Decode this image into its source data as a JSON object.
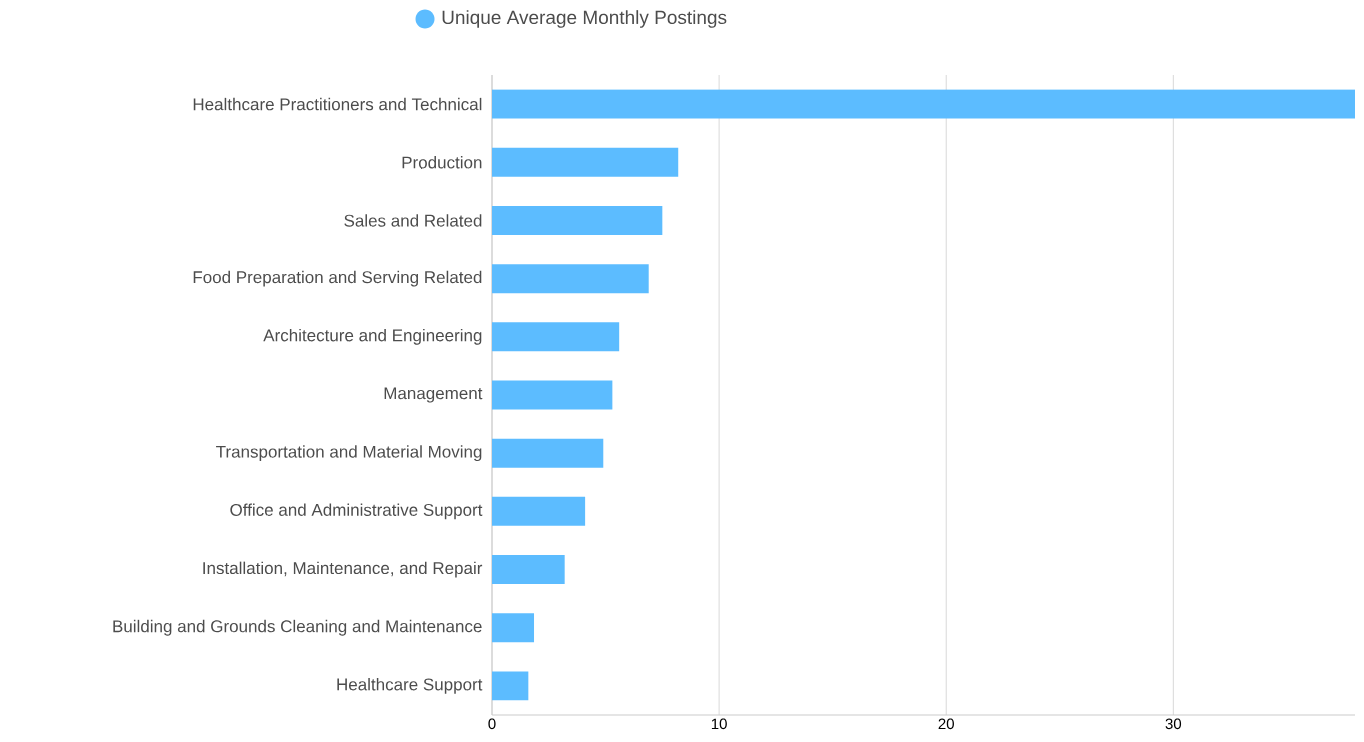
{
  "chart_data": {
    "type": "bar",
    "orientation": "horizontal",
    "categories": [
      "Healthcare Practitioners and Technical",
      "Production",
      "Sales and Related",
      "Food Preparation and Serving Related",
      "Architecture and Engineering",
      "Management",
      "Transportation and Material Moving",
      "Office and Administrative Support",
      "Installation, Maintenance, and Repair",
      "Building and Grounds Cleaning and Maintenance",
      "Healthcare Support"
    ],
    "series": [
      {
        "name": "Unique Average Monthly Postings",
        "color": "#5cbcff",
        "values": [
          38.0,
          8.2,
          7.5,
          6.9,
          5.6,
          5.3,
          4.9,
          4.1,
          3.2,
          1.85,
          1.6
        ]
      }
    ],
    "xlim": [
      0,
      38
    ],
    "xticks": [
      0,
      10,
      20,
      30
    ],
    "grid": "x",
    "legend": "top"
  }
}
